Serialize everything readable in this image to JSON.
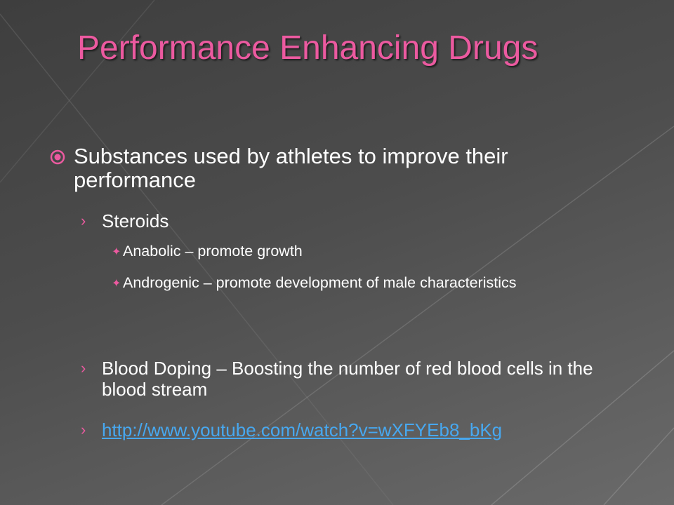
{
  "slide": {
    "title": "Performance Enhancing Drugs",
    "bullets": [
      {
        "text": "Substances used by athletes to improve their performance",
        "children": [
          {
            "text": "Steroids",
            "children": [
              {
                "text": "Anabolic – promote growth"
              },
              {
                "text": "Androgenic – promote development of male characteristics"
              }
            ]
          },
          {
            "text": "Blood Doping – Boosting the number of red blood cells in the blood stream"
          },
          {
            "url": "http://www.youtube.com/watch?v=wXFYEb8_bKg"
          }
        ]
      }
    ]
  }
}
